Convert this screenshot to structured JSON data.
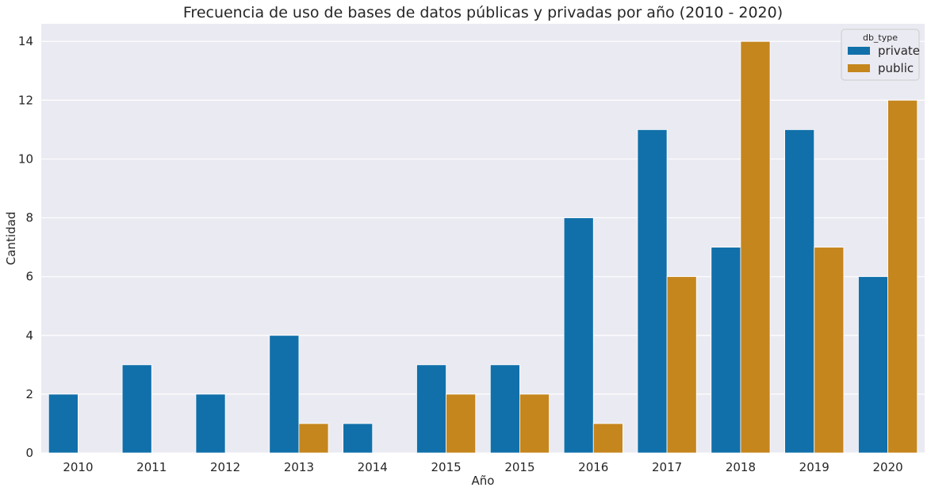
{
  "chart_data": {
    "type": "bar",
    "title": "Frecuencia de uso de bases de datos públicas y privadas por año (2010 - 2020)",
    "xlabel": "Año",
    "ylabel": "Cantidad",
    "categories": [
      "2010",
      "2011",
      "2012",
      "2013",
      "2014",
      "2015",
      "2015",
      "2016",
      "2017",
      "2018",
      "2019",
      "2020"
    ],
    "series": [
      {
        "name": "private",
        "color": "#1170aa",
        "values": [
          2,
          3,
          2,
          4,
          1,
          3,
          3,
          8,
          11,
          7,
          11,
          6
        ]
      },
      {
        "name": "public",
        "color": "#c5861e",
        "values": [
          0,
          0,
          0,
          1,
          0,
          2,
          2,
          1,
          6,
          14,
          7,
          12
        ]
      }
    ],
    "ylim": [
      0,
      14.6
    ],
    "yticks": [
      "0",
      "2",
      "4",
      "6",
      "8",
      "10",
      "12",
      "14"
    ],
    "grid": true,
    "legend": {
      "title": "db_type",
      "position": "top-right"
    },
    "background": "#eaeaf2"
  }
}
